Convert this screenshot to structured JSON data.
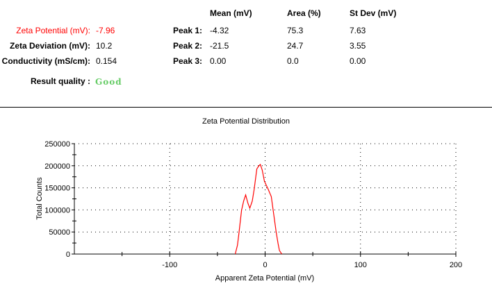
{
  "summary": {
    "zeta_potential_label": "Zeta Potential (mV):",
    "zeta_potential_value": "-7.96",
    "zeta_deviation_label": "Zeta Deviation (mV):",
    "zeta_deviation_value": "10.2",
    "conductivity_label": "Conductivity (mS/cm):",
    "conductivity_value": "0.154",
    "result_quality_label": "Result quality :",
    "result_quality_value": "Good"
  },
  "peaks": {
    "headers": [
      "Mean (mV)",
      "Area (%)",
      "St Dev (mV)"
    ],
    "rows": [
      {
        "label": "Peak 1:",
        "mean": "-4.32",
        "area": "75.3",
        "stdev": "7.63"
      },
      {
        "label": "Peak 2:",
        "mean": "-21.5",
        "area": "24.7",
        "stdev": "3.55"
      },
      {
        "label": "Peak 3:",
        "mean": "0.00",
        "area": "0.0",
        "stdev": "0.00"
      }
    ]
  },
  "colors": {
    "zeta_potential": "#ff0000",
    "good": "#66cc66",
    "line": "#ff0000"
  },
  "chart_data": {
    "type": "line",
    "title": "Zeta Potential Distribution",
    "xlabel": "Apparent Zeta Potential (mV)",
    "ylabel": "Total Counts",
    "xlim": [
      -200,
      200
    ],
    "ylim": [
      0,
      250000
    ],
    "xticks": [
      -100,
      0,
      100,
      200
    ],
    "yticks": [
      0,
      50000,
      100000,
      150000,
      200000,
      250000
    ],
    "grid": true,
    "series": [
      {
        "name": "Total Counts",
        "x": [
          -31.3,
          -29,
          -27.6,
          -24.7,
          -22.5,
          -20.4,
          -18,
          -16,
          -13.5,
          -11.6,
          -8.7,
          -6.5,
          -5,
          -3,
          -0.7,
          3,
          6.5,
          9,
          11.6,
          13.5,
          15,
          17.5
        ],
        "y": [
          0,
          20000,
          44000,
          99000,
          120000,
          134000,
          115000,
          104000,
          120000,
          145000,
          193000,
          200000,
          203000,
          190000,
          165000,
          148000,
          130000,
          90000,
          50000,
          25000,
          8000,
          0
        ]
      }
    ]
  }
}
